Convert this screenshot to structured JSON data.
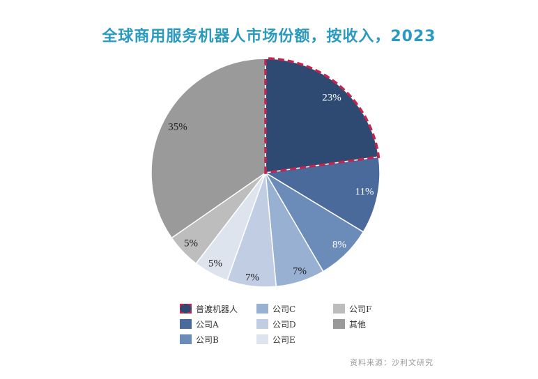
{
  "chart_data": {
    "type": "pie",
    "title": "全球商用服务机器人市场份额，按收入，2023",
    "slices": [
      {
        "name": "普渡机器人",
        "value": 23,
        "label": "23%",
        "color": "#2e4a72",
        "highlight": true
      },
      {
        "name": "公司A",
        "value": 11,
        "label": "11%",
        "color": "#4a6a9c"
      },
      {
        "name": "公司B",
        "value": 8,
        "label": "8%",
        "color": "#6b8bb8"
      },
      {
        "name": "公司C",
        "value": 7,
        "label": "7%",
        "color": "#98b0d2"
      },
      {
        "name": "公司D",
        "value": 7,
        "label": "7%",
        "color": "#c0cde2"
      },
      {
        "name": "公司E",
        "value": 5,
        "label": "5%",
        "color": "#dde4ee"
      },
      {
        "name": "公司F",
        "value": 5,
        "label": "5%",
        "color": "#bdbdbd"
      },
      {
        "name": "其他",
        "value": 35,
        "label": "35%",
        "color": "#9a9a9a"
      }
    ],
    "highlight_color": "#c0264f",
    "legend_position": "bottom"
  },
  "source": "资料来源：沙利文研究"
}
